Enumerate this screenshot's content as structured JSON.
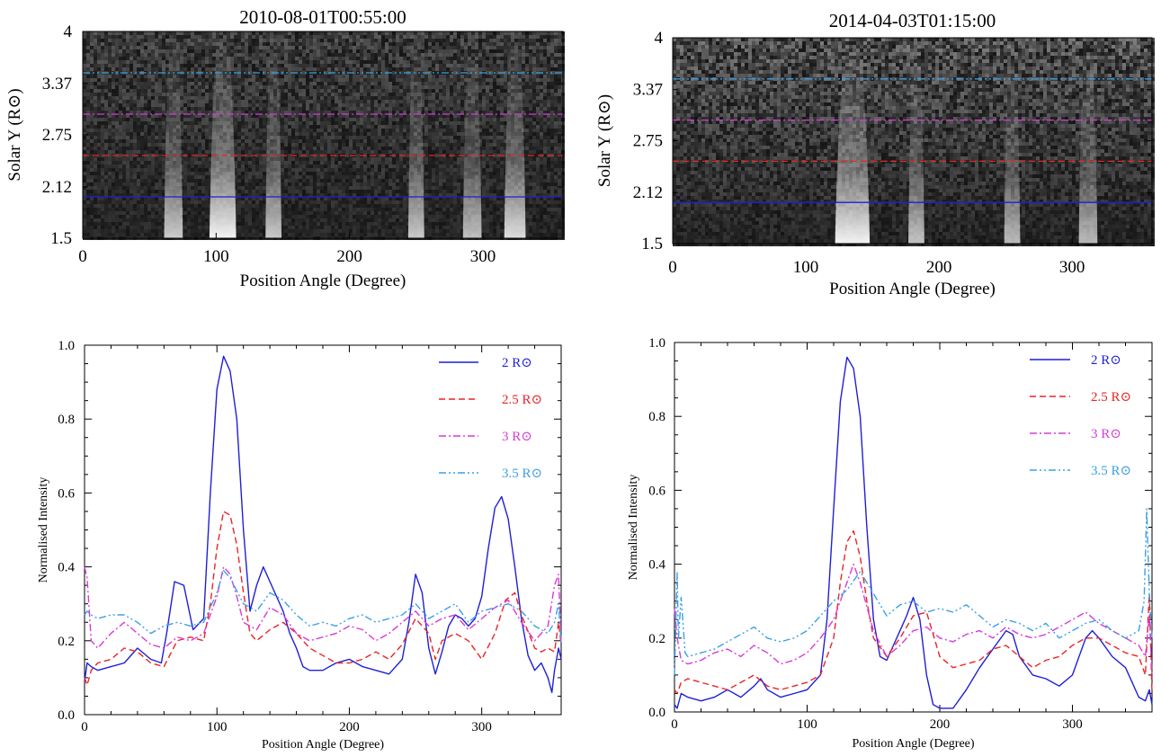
{
  "colors": {
    "r2": "#1f1fd8",
    "r25": "#ea2424",
    "r3": "#d63bd6",
    "r35": "#3aa0e6",
    "axis": "#000000"
  },
  "chart_data": [
    {
      "id": "img1",
      "type": "heatmap",
      "title": "2010-08-01T00:55:00",
      "xlabel": "Position Angle (Degree)",
      "ylabel": "Solar Y (R⊙)",
      "xlim": [
        0,
        360
      ],
      "ylim": [
        1.5,
        4.0
      ],
      "xticks": [
        "0",
        "100",
        "200",
        "300"
      ],
      "yticks": [
        "1.5",
        "2.12",
        "2.75",
        "3.37",
        "4"
      ],
      "height_lines": [
        {
          "r": 2.0,
          "style": "solid",
          "color": "#1f1fd8"
        },
        {
          "r": 2.5,
          "style": "dashed",
          "color": "#ea2424"
        },
        {
          "r": 3.0,
          "style": "dashdot",
          "color": "#d63bd6"
        },
        {
          "r": 3.5,
          "style": "dashdotdot",
          "color": "#3aa0e6"
        }
      ],
      "streamers": [
        {
          "pa": 68,
          "strength": 0.55,
          "width": 7
        },
        {
          "pa": 105,
          "strength": 1.0,
          "width": 10
        },
        {
          "pa": 143,
          "strength": 0.5,
          "width": 6
        },
        {
          "pa": 250,
          "strength": 0.5,
          "width": 6
        },
        {
          "pa": 292,
          "strength": 0.4,
          "width": 7
        },
        {
          "pa": 324,
          "strength": 0.75,
          "width": 8
        }
      ]
    },
    {
      "id": "img2",
      "type": "heatmap",
      "title": "2014-04-03T01:15:00",
      "xlabel": "Position Angle (Degree)",
      "ylabel": "Solar Y (R⊙)",
      "xlim": [
        0,
        360
      ],
      "ylim": [
        1.5,
        4.0
      ],
      "xticks": [
        "0",
        "100",
        "200",
        "300"
      ],
      "yticks": [
        "1.5",
        "2.12",
        "2.75",
        "3.37",
        "4"
      ],
      "height_lines": [
        {
          "r": 2.0,
          "style": "solid",
          "color": "#1f1fd8"
        },
        {
          "r": 2.5,
          "style": "dashed",
          "color": "#ea2424"
        },
        {
          "r": 3.0,
          "style": "dashdot",
          "color": "#d63bd6"
        },
        {
          "r": 3.5,
          "style": "dashdotdot",
          "color": "#3aa0e6"
        }
      ],
      "streamers": [
        {
          "pa": 135,
          "strength": 1.0,
          "width": 13
        },
        {
          "pa": 183,
          "strength": 0.45,
          "width": 6
        },
        {
          "pa": 255,
          "strength": 0.35,
          "width": 6
        },
        {
          "pa": 312,
          "strength": 0.35,
          "width": 7
        }
      ]
    },
    {
      "id": "line1",
      "type": "line",
      "xlabel": "Position Angle (Degree)",
      "ylabel": "Normalised Intensity",
      "xlim": [
        0,
        360
      ],
      "ylim": [
        0,
        1.0
      ],
      "xticks": [
        "0",
        "100",
        "200",
        "300"
      ],
      "yticks": [
        "0.0",
        "0.2",
        "0.4",
        "0.6",
        "0.8",
        "1.0"
      ],
      "legend_position": "top-right",
      "series": [
        {
          "name": "2 R⊙",
          "style": "solid",
          "color": "#1f1fd8",
          "x": [
            0,
            2,
            5,
            10,
            20,
            30,
            40,
            50,
            58,
            62,
            68,
            75,
            82,
            90,
            95,
            100,
            105,
            110,
            115,
            120,
            125,
            130,
            135,
            140,
            145,
            150,
            155,
            160,
            165,
            170,
            180,
            190,
            200,
            210,
            220,
            230,
            240,
            245,
            250,
            255,
            260,
            265,
            270,
            275,
            280,
            285,
            290,
            295,
            300,
            305,
            310,
            315,
            320,
            325,
            330,
            335,
            340,
            345,
            350,
            353,
            355,
            358,
            360
          ],
          "y": [
            0.09,
            0.14,
            0.13,
            0.12,
            0.13,
            0.14,
            0.18,
            0.15,
            0.14,
            0.22,
            0.36,
            0.35,
            0.23,
            0.26,
            0.6,
            0.88,
            0.97,
            0.93,
            0.8,
            0.5,
            0.28,
            0.35,
            0.4,
            0.36,
            0.32,
            0.28,
            0.22,
            0.18,
            0.13,
            0.12,
            0.12,
            0.14,
            0.15,
            0.13,
            0.12,
            0.11,
            0.15,
            0.25,
            0.38,
            0.33,
            0.18,
            0.11,
            0.17,
            0.24,
            0.27,
            0.26,
            0.24,
            0.26,
            0.32,
            0.45,
            0.56,
            0.59,
            0.53,
            0.4,
            0.26,
            0.16,
            0.12,
            0.14,
            0.1,
            0.06,
            0.12,
            0.18,
            0.15
          ]
        },
        {
          "name": "2.5 R⊙",
          "style": "dashed",
          "color": "#ea2424",
          "x": [
            0,
            2,
            5,
            10,
            20,
            30,
            40,
            50,
            60,
            70,
            80,
            90,
            95,
            100,
            105,
            110,
            115,
            120,
            125,
            130,
            140,
            150,
            160,
            170,
            180,
            190,
            200,
            210,
            220,
            230,
            240,
            250,
            260,
            265,
            270,
            280,
            290,
            300,
            310,
            318,
            325,
            330,
            340,
            345,
            350,
            355,
            358,
            360
          ],
          "y": [
            0.1,
            0.08,
            0.12,
            0.14,
            0.15,
            0.18,
            0.17,
            0.14,
            0.13,
            0.2,
            0.21,
            0.2,
            0.3,
            0.45,
            0.55,
            0.54,
            0.46,
            0.33,
            0.22,
            0.2,
            0.23,
            0.25,
            0.22,
            0.18,
            0.16,
            0.14,
            0.14,
            0.15,
            0.17,
            0.15,
            0.19,
            0.26,
            0.22,
            0.15,
            0.2,
            0.22,
            0.2,
            0.15,
            0.22,
            0.31,
            0.33,
            0.27,
            0.18,
            0.17,
            0.18,
            0.17,
            0.25,
            0.19
          ]
        },
        {
          "name": "3 R⊙",
          "style": "dashdot",
          "color": "#d63bd6",
          "x": [
            0,
            2,
            5,
            10,
            20,
            30,
            40,
            50,
            60,
            70,
            80,
            90,
            100,
            105,
            110,
            115,
            120,
            130,
            140,
            150,
            160,
            170,
            180,
            190,
            200,
            210,
            220,
            230,
            240,
            250,
            260,
            270,
            280,
            290,
            300,
            310,
            320,
            330,
            340,
            350,
            355,
            358,
            360
          ],
          "y": [
            0.4,
            0.37,
            0.2,
            0.18,
            0.22,
            0.25,
            0.22,
            0.19,
            0.18,
            0.21,
            0.2,
            0.22,
            0.32,
            0.4,
            0.38,
            0.32,
            0.25,
            0.23,
            0.29,
            0.27,
            0.22,
            0.2,
            0.21,
            0.22,
            0.24,
            0.23,
            0.2,
            0.22,
            0.25,
            0.28,
            0.24,
            0.26,
            0.27,
            0.23,
            0.26,
            0.29,
            0.31,
            0.25,
            0.2,
            0.24,
            0.35,
            0.38,
            0.19
          ]
        },
        {
          "name": "3.5 R⊙",
          "style": "dashdotdot",
          "color": "#3aa0e6",
          "x": [
            0,
            2,
            5,
            10,
            20,
            30,
            40,
            50,
            60,
            70,
            80,
            90,
            100,
            105,
            110,
            120,
            130,
            140,
            150,
            160,
            170,
            180,
            190,
            200,
            210,
            220,
            230,
            240,
            250,
            260,
            270,
            280,
            290,
            300,
            310,
            320,
            330,
            340,
            350,
            355,
            358,
            360
          ],
          "y": [
            0.27,
            0.28,
            0.27,
            0.26,
            0.27,
            0.27,
            0.25,
            0.22,
            0.24,
            0.25,
            0.24,
            0.25,
            0.33,
            0.39,
            0.37,
            0.3,
            0.28,
            0.33,
            0.31,
            0.27,
            0.24,
            0.25,
            0.24,
            0.26,
            0.27,
            0.25,
            0.26,
            0.27,
            0.3,
            0.26,
            0.28,
            0.3,
            0.25,
            0.28,
            0.29,
            0.3,
            0.28,
            0.24,
            0.22,
            0.25,
            0.3,
            0.19
          ]
        }
      ]
    },
    {
      "id": "line2",
      "type": "line",
      "xlabel": "Position Angle (Degree)",
      "ylabel": "Normalised Intensity",
      "xlim": [
        0,
        360
      ],
      "ylim": [
        0,
        1.0
      ],
      "xticks": [
        "0",
        "100",
        "200",
        "300"
      ],
      "yticks": [
        "0.0",
        "0.2",
        "0.4",
        "0.6",
        "0.8",
        "1.0"
      ],
      "legend_position": "top-right",
      "series": [
        {
          "name": "2 R⊙",
          "style": "solid",
          "color": "#1f1fd8",
          "x": [
            0,
            2,
            5,
            10,
            20,
            30,
            40,
            50,
            60,
            65,
            70,
            80,
            90,
            100,
            110,
            115,
            120,
            125,
            130,
            135,
            140,
            145,
            150,
            155,
            160,
            165,
            170,
            175,
            180,
            185,
            190,
            195,
            200,
            210,
            220,
            230,
            240,
            250,
            255,
            260,
            270,
            280,
            290,
            300,
            310,
            315,
            320,
            330,
            340,
            345,
            350,
            355,
            358,
            360
          ],
          "y": [
            0.02,
            0.01,
            0.05,
            0.04,
            0.03,
            0.04,
            0.06,
            0.04,
            0.07,
            0.09,
            0.06,
            0.04,
            0.05,
            0.06,
            0.1,
            0.25,
            0.55,
            0.84,
            0.96,
            0.93,
            0.8,
            0.5,
            0.25,
            0.15,
            0.14,
            0.18,
            0.22,
            0.26,
            0.31,
            0.25,
            0.1,
            0.02,
            0.01,
            0.01,
            0.06,
            0.12,
            0.17,
            0.22,
            0.21,
            0.15,
            0.1,
            0.09,
            0.07,
            0.1,
            0.2,
            0.22,
            0.2,
            0.15,
            0.12,
            0.08,
            0.04,
            0.03,
            0.06,
            0.02
          ]
        },
        {
          "name": "2.5 R⊙",
          "style": "dashed",
          "color": "#ea2424",
          "x": [
            0,
            2,
            5,
            10,
            20,
            30,
            40,
            50,
            60,
            70,
            80,
            90,
            100,
            110,
            120,
            125,
            130,
            135,
            140,
            145,
            150,
            160,
            170,
            180,
            190,
            200,
            210,
            220,
            230,
            240,
            250,
            260,
            270,
            280,
            290,
            300,
            310,
            320,
            330,
            340,
            350,
            355,
            358,
            360
          ],
          "y": [
            0.06,
            0.05,
            0.08,
            0.09,
            0.08,
            0.07,
            0.06,
            0.08,
            0.1,
            0.07,
            0.06,
            0.07,
            0.08,
            0.1,
            0.2,
            0.35,
            0.46,
            0.49,
            0.42,
            0.3,
            0.2,
            0.15,
            0.2,
            0.26,
            0.27,
            0.15,
            0.12,
            0.13,
            0.14,
            0.17,
            0.18,
            0.15,
            0.12,
            0.14,
            0.15,
            0.18,
            0.2,
            0.2,
            0.18,
            0.16,
            0.15,
            0.1,
            0.32,
            0.05
          ]
        },
        {
          "name": "3 R⊙",
          "style": "dashdot",
          "color": "#d63bd6",
          "x": [
            0,
            2,
            5,
            10,
            20,
            30,
            40,
            50,
            60,
            70,
            80,
            90,
            100,
            110,
            120,
            130,
            135,
            140,
            150,
            160,
            170,
            180,
            190,
            200,
            210,
            220,
            230,
            240,
            250,
            260,
            270,
            280,
            290,
            300,
            310,
            320,
            330,
            340,
            350,
            355,
            358,
            360
          ],
          "y": [
            0.28,
            0.2,
            0.14,
            0.13,
            0.14,
            0.16,
            0.17,
            0.15,
            0.18,
            0.16,
            0.13,
            0.14,
            0.16,
            0.2,
            0.25,
            0.35,
            0.4,
            0.35,
            0.22,
            0.15,
            0.18,
            0.22,
            0.23,
            0.2,
            0.19,
            0.21,
            0.22,
            0.2,
            0.23,
            0.21,
            0.2,
            0.21,
            0.23,
            0.25,
            0.27,
            0.24,
            0.22,
            0.2,
            0.18,
            0.15,
            0.26,
            0.1
          ]
        },
        {
          "name": "3.5 R⊙",
          "style": "dashdotdot",
          "color": "#3aa0e6",
          "x": [
            0,
            2,
            3,
            5,
            8,
            10,
            20,
            30,
            40,
            50,
            60,
            70,
            80,
            90,
            100,
            110,
            120,
            130,
            140,
            150,
            160,
            170,
            180,
            190,
            200,
            210,
            220,
            230,
            240,
            250,
            260,
            270,
            280,
            290,
            300,
            310,
            320,
            330,
            340,
            350,
            354,
            356,
            358,
            360
          ],
          "y": [
            0.1,
            0.38,
            0.2,
            0.31,
            0.16,
            0.15,
            0.16,
            0.17,
            0.19,
            0.21,
            0.23,
            0.2,
            0.19,
            0.2,
            0.22,
            0.26,
            0.3,
            0.33,
            0.38,
            0.32,
            0.26,
            0.29,
            0.3,
            0.27,
            0.28,
            0.27,
            0.29,
            0.26,
            0.23,
            0.25,
            0.24,
            0.22,
            0.24,
            0.2,
            0.22,
            0.24,
            0.25,
            0.22,
            0.2,
            0.22,
            0.3,
            0.55,
            0.32,
            0.2
          ]
        }
      ]
    }
  ]
}
